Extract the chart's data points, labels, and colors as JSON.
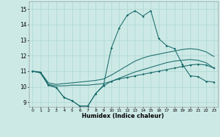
{
  "xlabel": "Humidex (Indice chaleur)",
  "xlim": [
    -0.5,
    23.5
  ],
  "ylim": [
    8.7,
    15.5
  ],
  "xticks": [
    0,
    1,
    2,
    3,
    4,
    5,
    6,
    7,
    8,
    9,
    10,
    11,
    12,
    13,
    14,
    15,
    16,
    17,
    18,
    19,
    20,
    21,
    22,
    23
  ],
  "yticks": [
    9,
    10,
    11,
    12,
    13,
    14,
    15
  ],
  "bg_color": "#cce9e6",
  "line_color": "#1a6b6b",
  "grid_color": "#aad6d0",
  "line1_y": [
    11.0,
    10.9,
    10.1,
    9.95,
    9.3,
    9.1,
    8.75,
    8.75,
    9.55,
    10.1,
    12.5,
    13.8,
    14.6,
    14.9,
    14.55,
    14.9,
    13.1,
    12.65,
    12.45,
    11.45,
    10.7,
    10.65,
    10.35,
    10.3
  ],
  "line2_y": [
    11.0,
    10.9,
    10.15,
    10.05,
    10.05,
    10.1,
    10.1,
    10.1,
    10.15,
    10.2,
    10.35,
    10.55,
    10.75,
    10.95,
    11.1,
    11.25,
    11.4,
    11.55,
    11.65,
    11.7,
    11.75,
    11.7,
    11.55,
    11.2
  ],
  "line3_y": [
    11.0,
    10.95,
    10.25,
    10.15,
    10.2,
    10.25,
    10.3,
    10.35,
    10.4,
    10.5,
    10.75,
    11.05,
    11.35,
    11.65,
    11.85,
    12.0,
    12.1,
    12.2,
    12.3,
    12.4,
    12.45,
    12.4,
    12.25,
    11.95
  ],
  "line4_y": [
    11.0,
    10.9,
    10.1,
    9.95,
    9.3,
    9.1,
    8.75,
    8.75,
    9.55,
    10.05,
    10.35,
    10.5,
    10.6,
    10.7,
    10.8,
    10.9,
    11.0,
    11.1,
    11.2,
    11.3,
    11.4,
    11.45,
    11.4,
    11.2
  ]
}
